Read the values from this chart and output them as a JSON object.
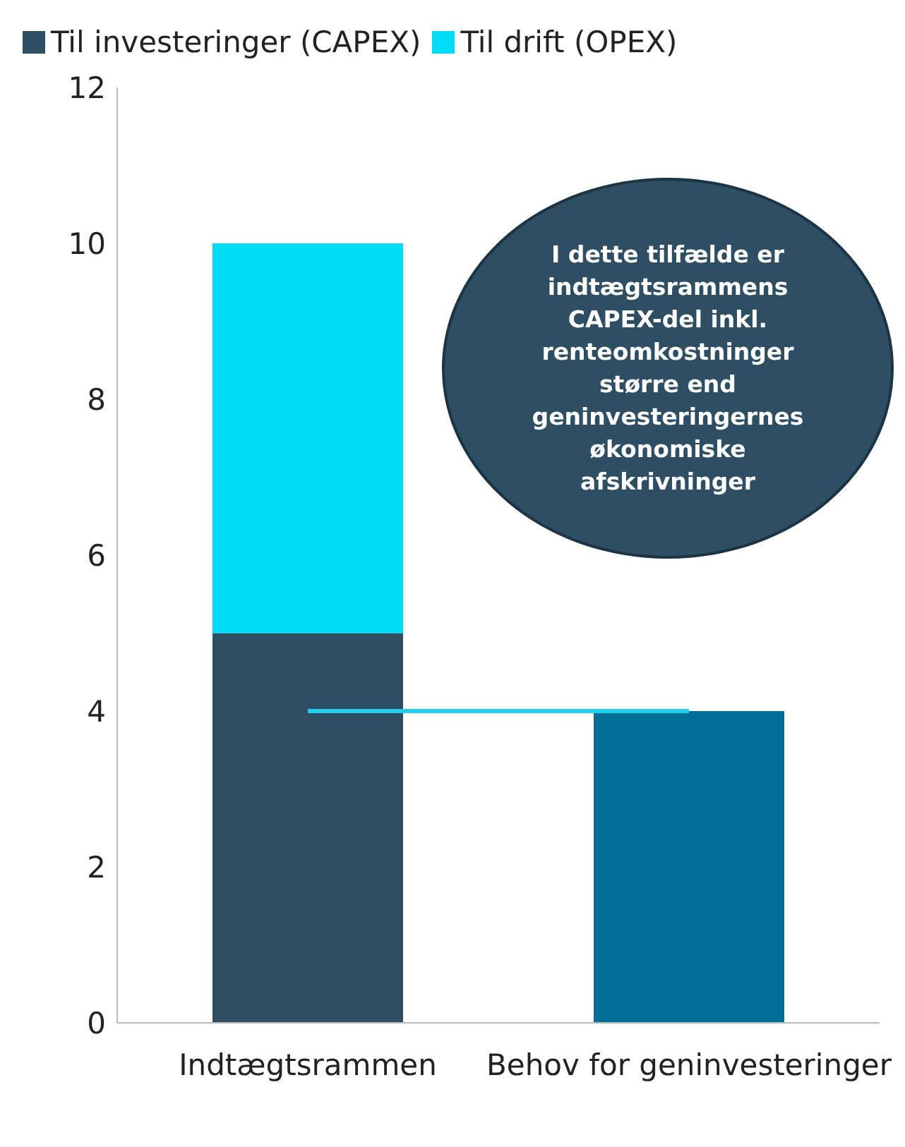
{
  "chart_data": {
    "type": "bar",
    "stacked": true,
    "categories": [
      "Indtægtsrammen",
      "Behov for geninvesteringer"
    ],
    "series": [
      {
        "name": "Til investeringer (CAPEX)",
        "colors": [
          "#2d4e63",
          "#006f98"
        ],
        "values": [
          5,
          4
        ]
      },
      {
        "name": "Til drift (OPEX)",
        "color": "#00dcf5",
        "values": [
          5,
          null
        ]
      }
    ],
    "ylim": [
      0,
      12
    ],
    "yticks": [
      0,
      2,
      4,
      6,
      8,
      10,
      12
    ],
    "grid": false,
    "legend": "top left",
    "ref_lines": [
      {
        "axis": "y",
        "value": 4,
        "color": "#1fd0e8"
      }
    ],
    "annotations": [
      "I dette tilfælde er indtægtsrammens CAPEX-del inkl. renteomkostninger større end geninvesteringernes økonomiske afskrivninger"
    ]
  }
}
